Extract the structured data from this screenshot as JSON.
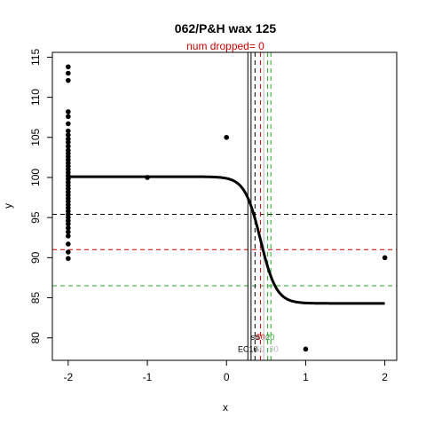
{
  "chart_data": {
    "type": "scatter",
    "title": "062/P&H wax 125",
    "subtitle": "num dropped= 0",
    "xlabel": "x",
    "ylabel": "y",
    "xlim": [
      -2.2,
      2.15
    ],
    "ylim": [
      77.2,
      115.6
    ],
    "x_ticks": [
      -2,
      -1,
      0,
      1,
      2
    ],
    "y_ticks": [
      80,
      85,
      90,
      95,
      100,
      105,
      110,
      115
    ],
    "grid": false,
    "colors": {
      "black": "#000000",
      "red": "#cc0000",
      "green": "#22aa22",
      "gray": "#bbbbbb"
    },
    "points": [
      {
        "x": -2,
        "y": 113.8
      },
      {
        "x": -2,
        "y": 113.0
      },
      {
        "x": -2,
        "y": 112.1
      },
      {
        "x": -2,
        "y": 108.2
      },
      {
        "x": -2,
        "y": 107.6
      },
      {
        "x": -2,
        "y": 106.7
      },
      {
        "x": -2,
        "y": 105.8
      },
      {
        "x": -2,
        "y": 105.3
      },
      {
        "x": -2,
        "y": 104.8
      },
      {
        "x": -2,
        "y": 104.4
      },
      {
        "x": -2,
        "y": 103.9
      },
      {
        "x": -2,
        "y": 103.4
      },
      {
        "x": -2,
        "y": 103.0
      },
      {
        "x": -2,
        "y": 102.6
      },
      {
        "x": -2,
        "y": 102.2
      },
      {
        "x": -2,
        "y": 101.8
      },
      {
        "x": -2,
        "y": 101.4
      },
      {
        "x": -2,
        "y": 101.0
      },
      {
        "x": -2,
        "y": 100.6
      },
      {
        "x": -2,
        "y": 100.2
      },
      {
        "x": -2,
        "y": 99.8
      },
      {
        "x": -2,
        "y": 99.4
      },
      {
        "x": -2,
        "y": 99.0
      },
      {
        "x": -2,
        "y": 98.6
      },
      {
        "x": -2,
        "y": 98.2
      },
      {
        "x": -2,
        "y": 97.8
      },
      {
        "x": -2,
        "y": 97.4
      },
      {
        "x": -2,
        "y": 97.0
      },
      {
        "x": -2,
        "y": 96.6
      },
      {
        "x": -2,
        "y": 96.2
      },
      {
        "x": -2,
        "y": 95.8
      },
      {
        "x": -2,
        "y": 95.4
      },
      {
        "x": -2,
        "y": 95.0
      },
      {
        "x": -2,
        "y": 94.6
      },
      {
        "x": -2,
        "y": 94.2
      },
      {
        "x": -2,
        "y": 93.7
      },
      {
        "x": -2,
        "y": 93.2
      },
      {
        "x": -2,
        "y": 92.7
      },
      {
        "x": -2,
        "y": 91.7
      },
      {
        "x": -2,
        "y": 90.7
      },
      {
        "x": -2,
        "y": 89.9
      },
      {
        "x": -1,
        "y": 100.0
      },
      {
        "x": 0,
        "y": 105.0
      },
      {
        "x": 1,
        "y": 78.6
      },
      {
        "x": 2,
        "y": 90.0
      }
    ],
    "fit_curve": {
      "top": 100.1,
      "bottom": 84.3,
      "x_mid": 0.43,
      "hill": 10,
      "x_from": -2,
      "x_to": 2
    },
    "hlines": [
      {
        "y": 95.4,
        "color": "black"
      },
      {
        "y": 91.0,
        "color": "red"
      },
      {
        "y": 86.5,
        "color": "green"
      }
    ],
    "vlines": [
      {
        "x": 0.27,
        "color": "black",
        "style": "solid"
      },
      {
        "x": 0.31,
        "color": "black",
        "style": "solid"
      },
      {
        "x": 0.36,
        "color": "black",
        "style": "dashed"
      },
      {
        "x": 0.43,
        "color": "red",
        "style": "dashed"
      },
      {
        "x": 0.47,
        "color": "gray",
        "style": "solid"
      },
      {
        "x": 0.52,
        "color": "green",
        "style": "dashed"
      },
      {
        "x": 0.56,
        "color": "green",
        "style": "dashed"
      }
    ],
    "annotations": [
      {
        "text": "sd",
        "x": 0.36,
        "y": 80.1,
        "color": "black"
      },
      {
        "text": "50",
        "x": 0.43,
        "y": 80.1,
        "color": "red"
      },
      {
        "text": "sd",
        "x": 0.49,
        "y": 80.1,
        "color": "gray"
      },
      {
        "text": "20",
        "x": 0.55,
        "y": 80.1,
        "color": "green"
      },
      {
        "text": "EC10",
        "x": 0.27,
        "y": 78.6,
        "color": "black"
      },
      {
        "text": "50",
        "x": 0.42,
        "y": 78.6,
        "color": "gray"
      },
      {
        "text": "90",
        "x": 0.6,
        "y": 78.6,
        "color": "gray"
      }
    ]
  }
}
